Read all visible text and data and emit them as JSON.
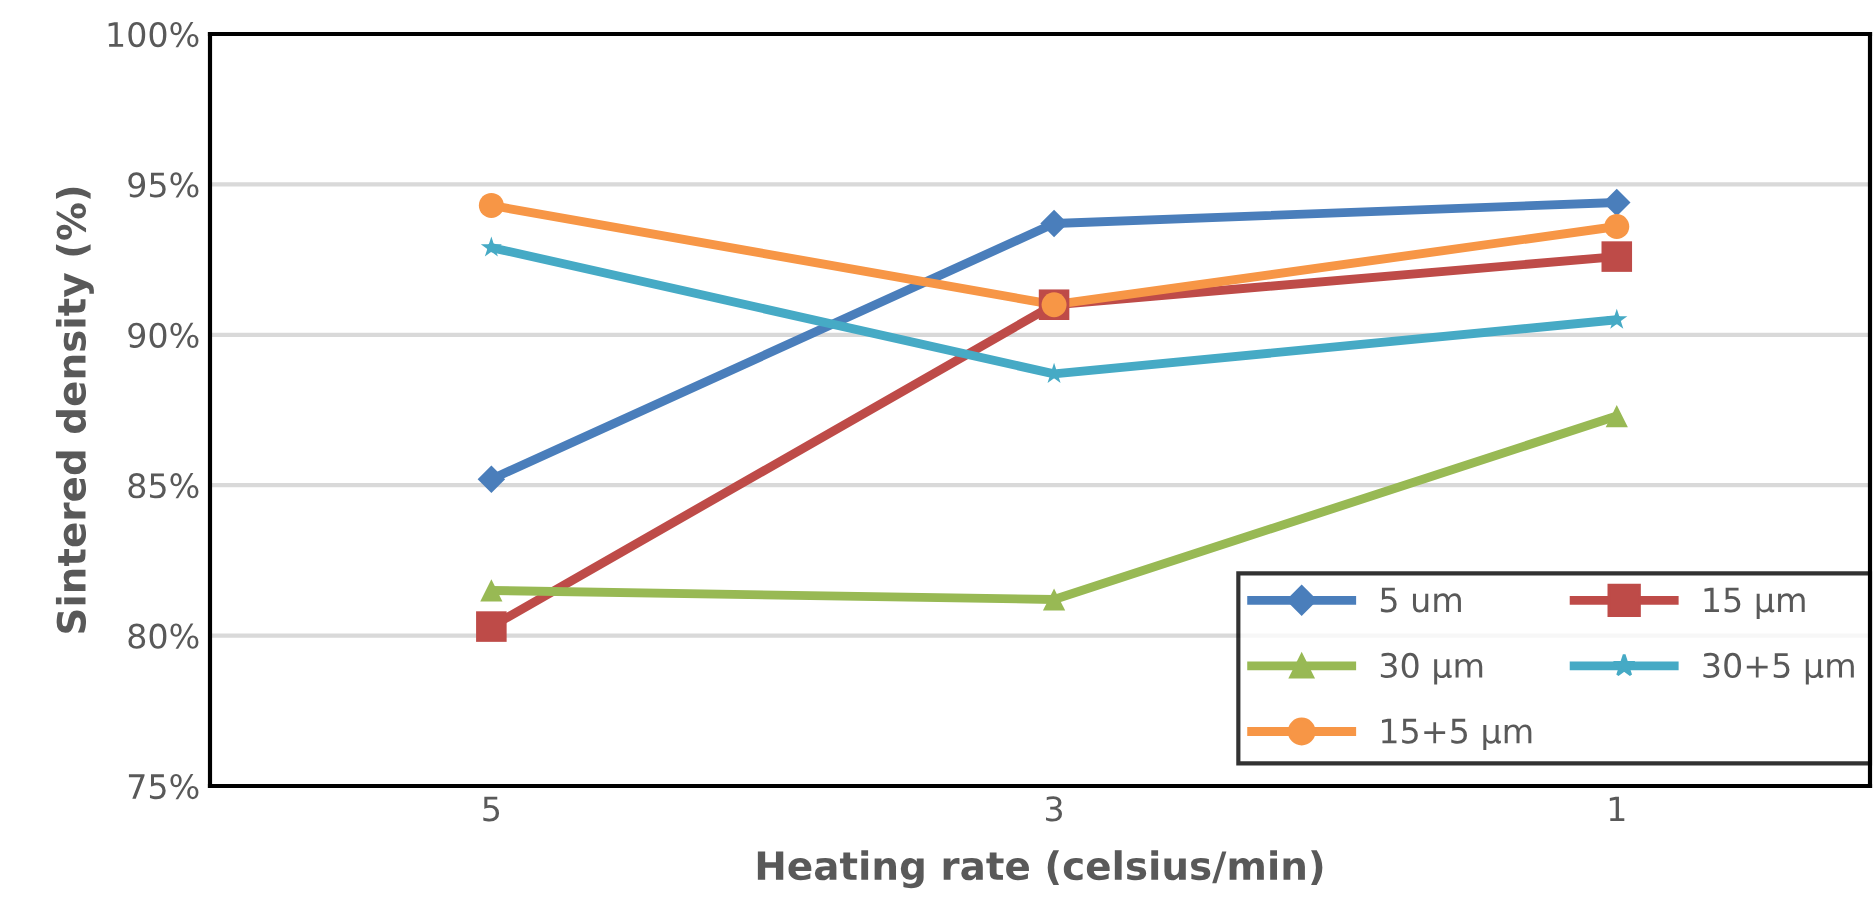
{
  "chart_data": {
    "type": "line",
    "xlabel": "Heating rate (celsius/min)",
    "ylabel": "Sintered density (%)",
    "categories": [
      "5",
      "3",
      "1"
    ],
    "series": [
      {
        "name": "5 um",
        "color": "#4a7ebb",
        "values": [
          85.2,
          93.7,
          94.4
        ],
        "marker": "diamond"
      },
      {
        "name": "15 µm",
        "color": "#be4b48",
        "values": [
          80.3,
          91.0,
          92.6
        ],
        "marker": "square"
      },
      {
        "name": "30 µm",
        "color": "#98b954",
        "values": [
          81.5,
          81.2,
          87.3
        ],
        "marker": "triangle"
      },
      {
        "name": "30+5 µm",
        "color": "#46aac5",
        "values": [
          92.9,
          88.7,
          90.5
        ],
        "marker": "star"
      },
      {
        "name": "15+5 µm",
        "color": "#f79646",
        "values": [
          94.3,
          91.0,
          93.6
        ],
        "marker": "circle"
      }
    ],
    "ylim": [
      75,
      100
    ],
    "yticks": [
      {
        "value": 75,
        "label": "75%"
      },
      {
        "value": 80,
        "label": "80%"
      },
      {
        "value": 85,
        "label": "85%"
      },
      {
        "value": 90,
        "label": "90%"
      },
      {
        "value": 95,
        "label": "95%"
      },
      {
        "value": 100,
        "label": "100%"
      }
    ],
    "grid": "y",
    "legend": "bottom right",
    "line_style": "solid"
  }
}
